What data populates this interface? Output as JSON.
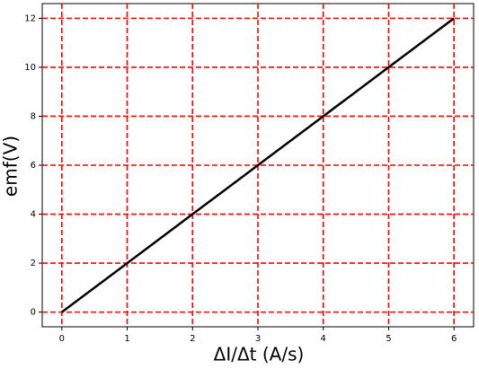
{
  "chart_data": {
    "type": "line",
    "x_label": "ΔI/Δt (A/s)",
    "y_label": "emf(V)",
    "x": [
      0,
      1,
      2,
      3,
      4,
      5,
      6
    ],
    "series": [
      {
        "color": "#000000",
        "values": [
          0,
          2,
          4,
          6,
          8,
          10,
          12
        ]
      }
    ],
    "xlim": [
      -0.3,
      6.3
    ],
    "ylim": [
      -0.6,
      12.6
    ],
    "xticks": [
      0,
      1,
      2,
      3,
      4,
      5,
      6
    ],
    "yticks": [
      0,
      2,
      4,
      6,
      8,
      10,
      12
    ],
    "grid": true,
    "grid_color": "#ff0000"
  }
}
